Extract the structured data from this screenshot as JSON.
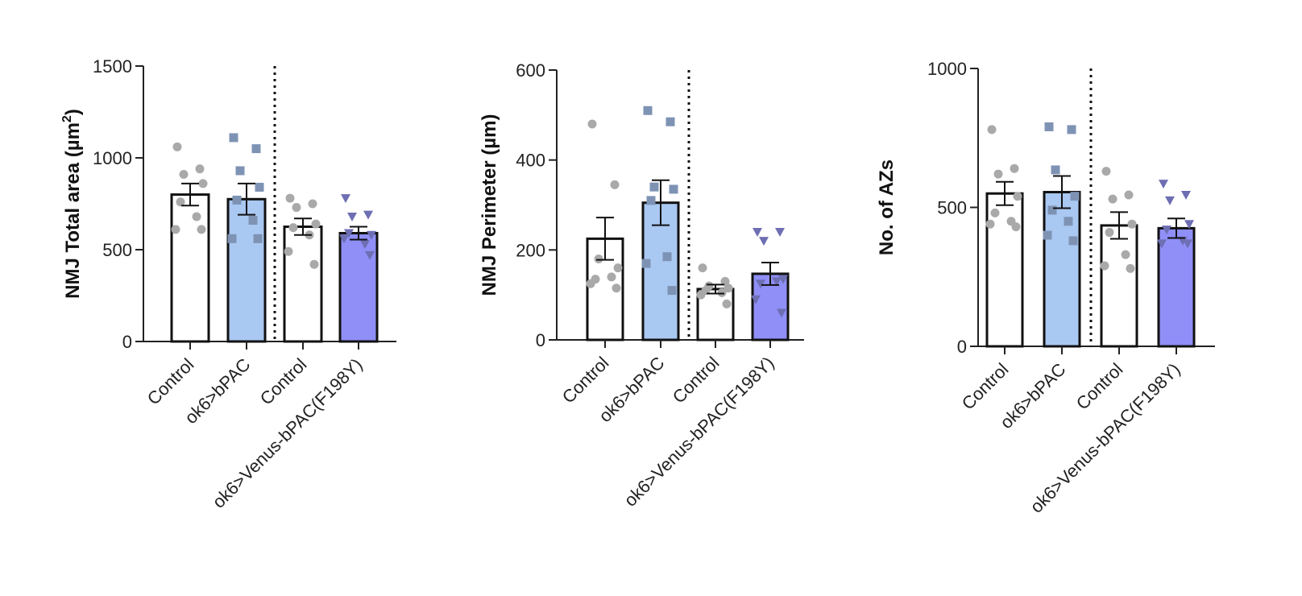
{
  "chart_data": [
    {
      "type": "bar",
      "ylabel": "NMJ Total area (µm",
      "ylabel_sup": "2",
      "ylabel_end": ")",
      "ylim": [
        0,
        1500
      ],
      "yticks": [
        0,
        500,
        1000,
        1500
      ],
      "yticks_text": [
        "0",
        "500",
        "1000",
        "1500"
      ],
      "categories": [
        "Control",
        "ok6>bPAC",
        "Control",
        "ok6>Venus-bPAC(F198Y)"
      ],
      "divider_after": 1,
      "bars": [
        {
          "mean": 800,
          "sem": 60,
          "fill": "#ffffff",
          "marker": "circle",
          "marker_color": "#a9a9a9",
          "points": [
            1060,
            940,
            910,
            860,
            760,
            680,
            610,
            610
          ]
        },
        {
          "mean": 775,
          "sem": 85,
          "fill": "#a9c8f2",
          "marker": "square",
          "marker_color": "#7e93b4",
          "points": [
            1110,
            1050,
            930,
            840,
            770,
            660,
            560,
            560
          ]
        },
        {
          "mean": 625,
          "sem": 45,
          "fill": "#ffffff",
          "marker": "circle",
          "marker_color": "#a9a9a9",
          "points": [
            780,
            750,
            730,
            640,
            620,
            580,
            490,
            420
          ]
        },
        {
          "mean": 590,
          "sem": 35,
          "fill": "#8f8ff7",
          "marker": "triangle-down",
          "marker_color": "#6e6eb3",
          "points": [
            780,
            690,
            680,
            580,
            590,
            530,
            560,
            470
          ]
        }
      ]
    },
    {
      "type": "bar",
      "ylabel": "NMJ Perimeter (µm)",
      "ylim": [
        0,
        600
      ],
      "yticks": [
        0,
        200,
        400,
        600
      ],
      "yticks_text": [
        "0",
        "200",
        "400",
        "600"
      ],
      "categories": [
        "Control",
        "ok6>bPAC",
        "Control",
        "ok6>Venus-bPAC(F198Y)"
      ],
      "divider_after": 1,
      "bars": [
        {
          "mean": 225,
          "sem": 47,
          "fill": "#ffffff",
          "marker": "circle",
          "marker_color": "#a9a9a9",
          "points": [
            480,
            345,
            180,
            160,
            135,
            140,
            125,
            115
          ]
        },
        {
          "mean": 305,
          "sem": 50,
          "fill": "#a9c8f2",
          "marker": "square",
          "marker_color": "#7e93b4",
          "points": [
            510,
            485,
            340,
            335,
            310,
            185,
            170,
            110
          ]
        },
        {
          "mean": 113,
          "sem": 10,
          "fill": "#ffffff",
          "marker": "circle",
          "marker_color": "#a9a9a9",
          "points": [
            160,
            130,
            120,
            115,
            110,
            105,
            100,
            80
          ]
        },
        {
          "mean": 147,
          "sem": 25,
          "fill": "#8f8ff7",
          "marker": "triangle-down",
          "marker_color": "#6e6eb3",
          "points": [
            240,
            240,
            220,
            135,
            125,
            130,
            90,
            60
          ]
        }
      ]
    },
    {
      "type": "bar",
      "ylabel": "No. of AZs",
      "ylim": [
        0,
        1000
      ],
      "yticks": [
        0,
        500,
        1000
      ],
      "yticks_text": [
        "0",
        "500",
        "1000"
      ],
      "categories": [
        "Control",
        "ok6>bPAC",
        "Control",
        "ok6>Venus-bPAC(F198Y)"
      ],
      "divider_after": 1,
      "bars": [
        {
          "mean": 550,
          "sem": 42,
          "fill": "#ffffff",
          "marker": "circle",
          "marker_color": "#a9a9a9",
          "points": [
            780,
            640,
            620,
            540,
            480,
            450,
            440,
            430
          ]
        },
        {
          "mean": 555,
          "sem": 58,
          "fill": "#a9c8f2",
          "marker": "square",
          "marker_color": "#7e93b4",
          "points": [
            790,
            780,
            635,
            540,
            490,
            450,
            400,
            380
          ]
        },
        {
          "mean": 435,
          "sem": 48,
          "fill": "#ffffff",
          "marker": "circle",
          "marker_color": "#a9a9a9",
          "points": [
            630,
            545,
            530,
            440,
            410,
            330,
            290,
            280
          ]
        },
        {
          "mean": 425,
          "sem": 35,
          "fill": "#8f8ff7",
          "marker": "triangle-down",
          "marker_color": "#6e6eb3",
          "points": [
            585,
            545,
            525,
            440,
            420,
            380,
            370,
            370
          ]
        }
      ]
    }
  ]
}
